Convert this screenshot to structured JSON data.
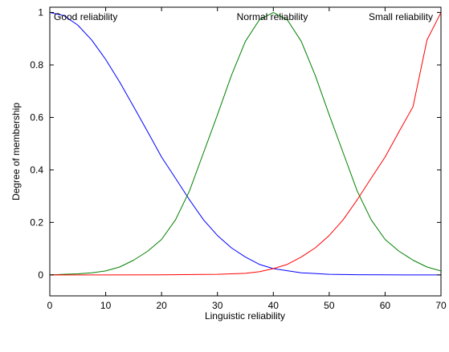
{
  "chart_data": {
    "type": "line",
    "title": "",
    "xlabel": "Linguistic reliability",
    "ylabel": "Degree of membership",
    "xlim": [
      0,
      70
    ],
    "ylim": [
      -0.08,
      1.02
    ],
    "x_ticks": [
      0,
      10,
      20,
      30,
      40,
      50,
      60,
      70
    ],
    "y_ticks": [
      0,
      0.2,
      0.4,
      0.6,
      0.8,
      1
    ],
    "x_tick_labels": [
      "0",
      "10",
      "20",
      "30",
      "40",
      "50",
      "60",
      "70"
    ],
    "y_tick_labels": [
      "0",
      "0.2",
      "0.4",
      "0.6",
      "0.8",
      "1"
    ],
    "grid": false,
    "legend": "none",
    "series": [
      {
        "name": "Good reliability",
        "color": "#0000ff",
        "x": [
          0,
          2.5,
          5,
          7.5,
          10,
          12.5,
          15,
          17.5,
          20,
          22.5,
          25,
          27.5,
          30,
          32.5,
          35,
          37.5,
          40,
          45,
          50,
          55,
          60,
          65,
          70
        ],
        "y": [
          1.0,
          0.988,
          0.952,
          0.895,
          0.821,
          0.735,
          0.641,
          0.546,
          0.449,
          0.368,
          0.286,
          0.21,
          0.15,
          0.103,
          0.068,
          0.04,
          0.024,
          0.008,
          0.002,
          0.0005,
          0.0001,
          0.0,
          0.0
        ]
      },
      {
        "name": "Normal reliability",
        "color": "#008000",
        "x": [
          0,
          2.5,
          5,
          7.5,
          10,
          12.5,
          15,
          17.5,
          20,
          22.5,
          25,
          27.5,
          30,
          32.5,
          35,
          37.5,
          40,
          42.5,
          45,
          47.5,
          50,
          52.5,
          55,
          57.5,
          60,
          62.5,
          65,
          67.5,
          70
        ],
        "y": [
          0.0,
          0.002,
          0.004,
          0.008,
          0.015,
          0.03,
          0.056,
          0.09,
          0.135,
          0.21,
          0.32,
          0.465,
          0.61,
          0.76,
          0.89,
          0.972,
          1.0,
          0.972,
          0.89,
          0.76,
          0.61,
          0.465,
          0.32,
          0.21,
          0.135,
          0.09,
          0.056,
          0.03,
          0.015
        ]
      },
      {
        "name": "Small reliability",
        "color": "#ff0000",
        "x": [
          0,
          10,
          20,
          30,
          35,
          37.5,
          40,
          42.5,
          45,
          47.5,
          50,
          52.5,
          55,
          57.5,
          60,
          62.5,
          65,
          67.5,
          70
        ],
        "y": [
          0.0,
          0.0,
          0.0001,
          0.002,
          0.006,
          0.012,
          0.024,
          0.04,
          0.068,
          0.103,
          0.15,
          0.21,
          0.286,
          0.368,
          0.449,
          0.546,
          0.641,
          0.895,
          1.0
        ]
      }
    ],
    "annotations": [
      {
        "text": "Good reliability",
        "anchor": "top-left"
      },
      {
        "text": "Normal reliability",
        "anchor": "top-center"
      },
      {
        "text": "Small reliability",
        "anchor": "top-right"
      }
    ]
  }
}
